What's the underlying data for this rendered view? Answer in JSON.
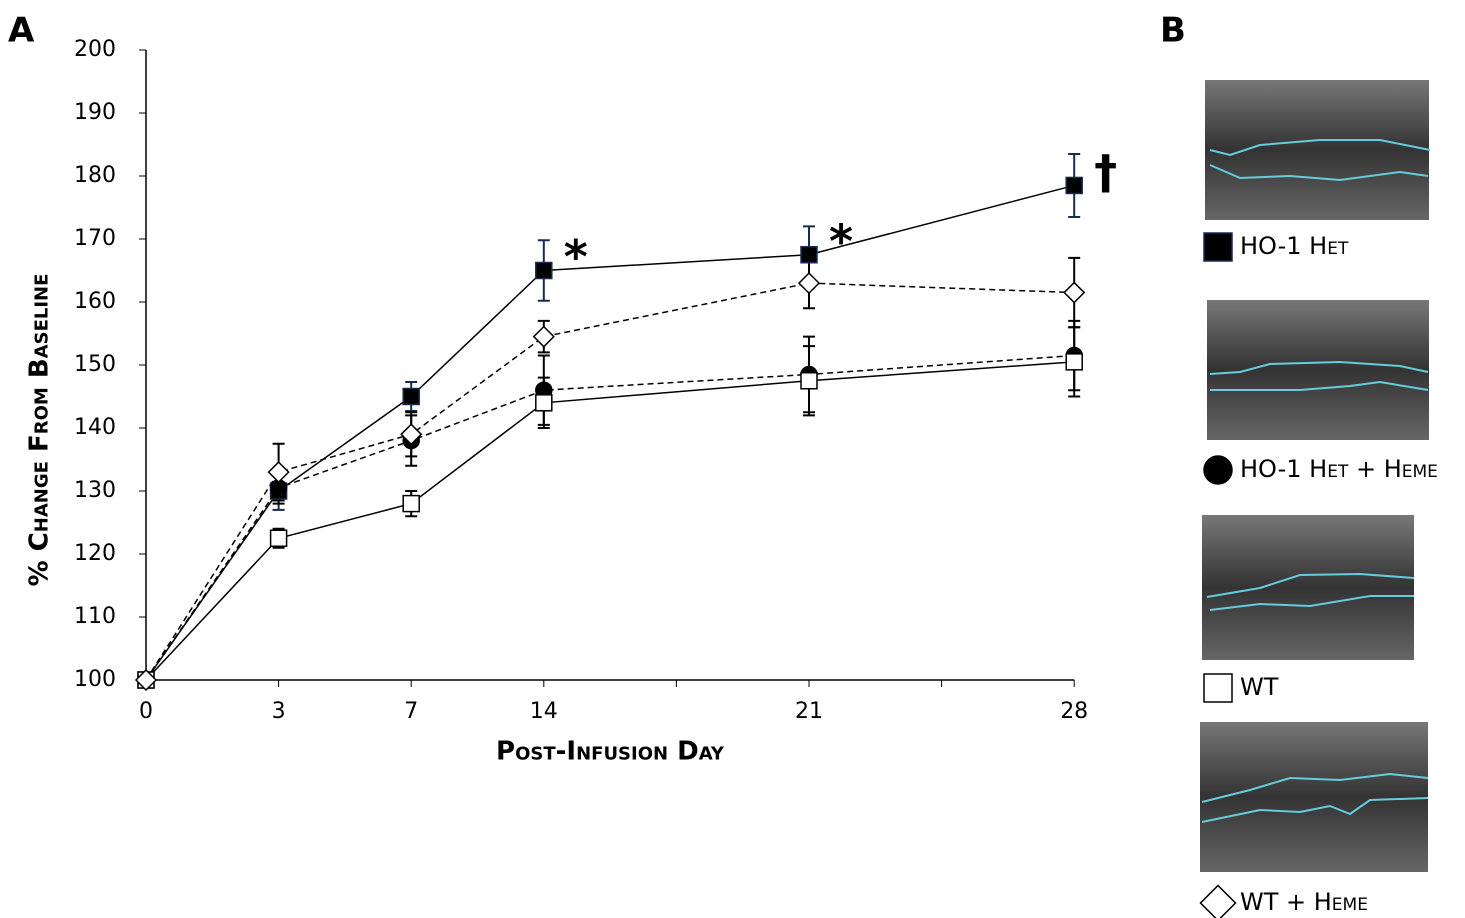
{
  "chart_data": {
    "type": "line",
    "panel_labels": [
      "A",
      "B"
    ],
    "y_label": "% Change From Baseline",
    "x_label": "Post-Infusion Day",
    "categories": [
      "0",
      "3",
      "7",
      "14",
      "21",
      "28"
    ],
    "ylim": [
      100,
      200
    ],
    "yticks": [
      100,
      110,
      120,
      130,
      140,
      150,
      160,
      170,
      180,
      190,
      200
    ],
    "series": [
      {
        "name": "HO-1 Het",
        "marker": "square",
        "fill": "#000000",
        "dashed": false,
        "values": [
          100,
          130,
          145,
          165,
          167.5,
          178.5
        ],
        "errors": [
          0,
          3,
          2.3,
          4.8,
          4.5,
          5
        ]
      },
      {
        "name": "HO-1 Het + Heme",
        "marker": "circle",
        "fill": "#000000",
        "dashed": true,
        "values": [
          100,
          130.5,
          138,
          146,
          148.5,
          151.5
        ],
        "errors": [
          0,
          2.5,
          4,
          5.5,
          6,
          5.5
        ]
      },
      {
        "name": "WT",
        "marker": "square",
        "fill": "#ffffff",
        "dashed": false,
        "values": [
          100,
          122.5,
          128,
          144,
          147.5,
          150.5
        ],
        "errors": [
          0,
          1.5,
          2,
          4,
          5.5,
          5.5
        ]
      },
      {
        "name": "WT + Heme",
        "marker": "diamond",
        "fill": "#ffffff",
        "dashed": true,
        "values": [
          100,
          133,
          139,
          154.5,
          163,
          161.5
        ],
        "errors": [
          0,
          4.5,
          3.5,
          2.5,
          4,
          5.5
        ]
      }
    ],
    "annotations": [
      {
        "text": "*",
        "category": 3
      },
      {
        "text": "*",
        "category": 4
      },
      {
        "text": "†",
        "category": 5
      }
    ]
  }
}
